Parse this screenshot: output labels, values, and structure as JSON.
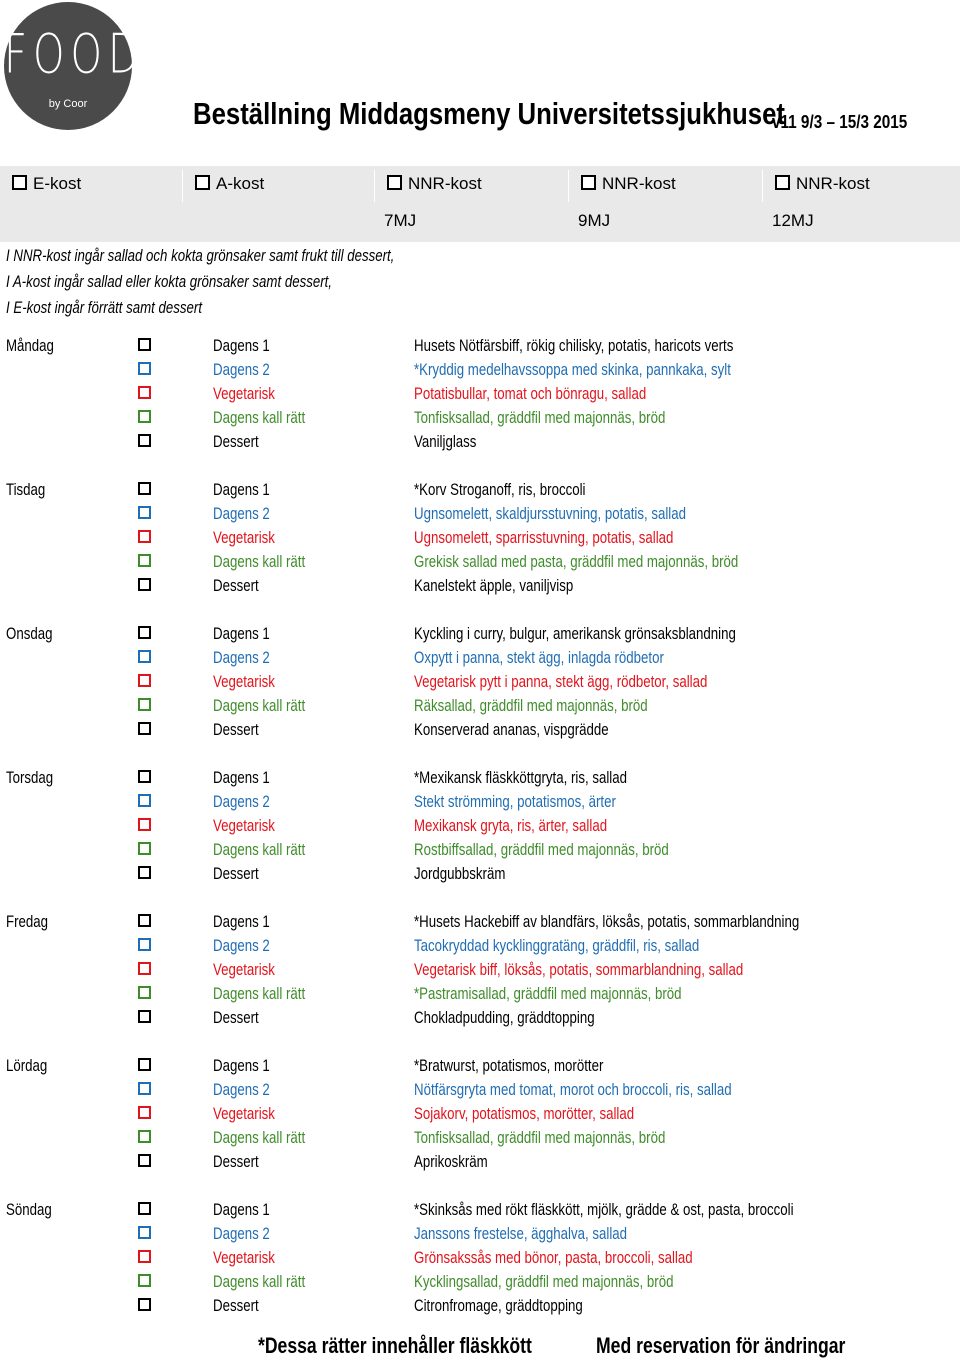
{
  "logo": {
    "main": "FOOD",
    "sub": "by Coor"
  },
  "header": {
    "title": "Beställning Middagsmeny Universitetssjukhuset",
    "version": "v11 9/3 – 15/3 2015"
  },
  "kost_options": [
    {
      "label": "E-kost",
      "sub": ""
    },
    {
      "label": "A-kost",
      "sub": ""
    },
    {
      "label": "NNR-kost",
      "sub": "7MJ"
    },
    {
      "label": "NNR-kost",
      "sub": "9MJ"
    },
    {
      "label": "NNR-kost",
      "sub": "12MJ"
    }
  ],
  "notes": [
    "I NNR-kost ingår sallad och kokta grönsaker samt frukt till dessert,",
    "I A-kost ingår sallad eller kokta grönsaker samt dessert,",
    "I E-kost ingår förrätt samt dessert"
  ],
  "categories": [
    "Dagens 1",
    "Dagens 2",
    "Vegetarisk",
    "Dagens kall rätt",
    "Dessert"
  ],
  "category_colors": [
    "#000000",
    "#1f6db3",
    "#e2131b",
    "#3f8c2a",
    "#000000"
  ],
  "days": [
    {
      "day": "Måndag",
      "dishes": [
        "Husets Nötfärsbiff, rökig chilisky, potatis, haricots verts",
        "*Kryddig medelhavssoppa med skinka, pannkaka, sylt",
        "Potatisbullar, tomat och bönragu, sallad",
        "Tonfisksallad, gräddfil med majonnäs, bröd",
        "Vaniljglass"
      ]
    },
    {
      "day": "Tisdag",
      "dishes": [
        "*Korv Stroganoff, ris, broccoli",
        "Ugnsomelett, skaldjursstuvning, potatis, sallad",
        "Ugnsomelett, sparrisstuvning, potatis, sallad",
        "Grekisk sallad med pasta, gräddfil med majonnäs, bröd",
        "Kanelstekt äpple, vaniljvisp"
      ]
    },
    {
      "day": "Onsdag",
      "dishes": [
        "Kyckling i curry, bulgur, amerikansk grönsaksblandning",
        "Oxpytt i panna, stekt ägg, inlagda rödbetor",
        "Vegetarisk pytt i panna, stekt ägg, rödbetor, sallad",
        "Räksallad, gräddfil med majonnäs, bröd",
        "Konserverad ananas, vispgrädde"
      ]
    },
    {
      "day": "Torsdag",
      "dishes": [
        "*Mexikansk fläskköttgryta, ris, sallad",
        "Stekt strömming, potatismos, ärter",
        "Mexikansk gryta, ris, ärter, sallad",
        "Rostbiffsallad, gräddfil med majonnäs, bröd",
        "Jordgubbskräm"
      ]
    },
    {
      "day": "Fredag",
      "dishes": [
        "*Husets Hackebiff av blandfärs, löksås, potatis, sommarblandning",
        "Tacokryddad kycklinggratäng, gräddfil, ris, sallad",
        "Vegetarisk biff, löksås, potatis, sommarblandning, sallad",
        "*Pastramisallad, gräddfil med majonnäs, bröd",
        "Chokladpudding, gräddtopping"
      ]
    },
    {
      "day": "Lördag",
      "dishes": [
        "*Bratwurst, potatismos, morötter",
        "Nötfärsgryta med tomat, morot och broccoli, ris, sallad",
        "Sojakorv, potatismos, morötter, sallad",
        "Tonfisksallad, gräddfil med majonnäs, bröd",
        "Aprikoskräm"
      ]
    },
    {
      "day": "Söndag",
      "dishes": [
        "*Skinksås med rökt fläskkött, mjölk, grädde & ost, pasta, broccoli",
        "Janssons frestelse, ägghalva, sallad",
        "Grönsakssås med bönor, pasta, broccoli, sallad",
        "Kycklingsallad, gräddfil med majonnäs, bröd",
        "Citronfromage, gräddtopping"
      ]
    }
  ],
  "footer": {
    "left": "*Dessa rätter innehåller fläskkött",
    "right": "Med reservation för ändringar"
  }
}
